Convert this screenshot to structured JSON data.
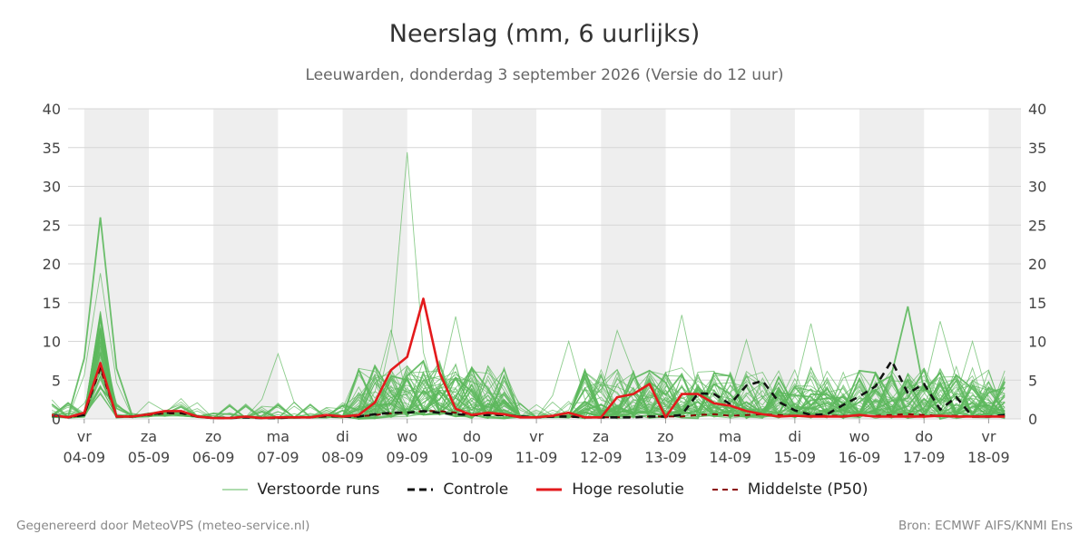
{
  "title": "Neerslag (mm, 6 uurlijks)",
  "subtitle": "Leeuwarden, donderdag  3 september 2026 (Versie do 12 uur)",
  "footer": {
    "left": "Gegenereerd door MeteoVPS (meteo-service.nl)",
    "right": "Bron: ECMWF AIFS/KNMI Ens"
  },
  "legend": [
    {
      "label": "Verstoorde runs",
      "color": "#5cb85c",
      "style": "thin"
    },
    {
      "label": "Controle",
      "color": "#111111",
      "style": "dashed"
    },
    {
      "label": "Hoge resolutie",
      "color": "#e31a1c",
      "style": "solid"
    },
    {
      "label": "Middelste (P50)",
      "color": "#8b0000",
      "style": "dashed-thin"
    }
  ],
  "chart_data": {
    "type": "line",
    "ylim": [
      0,
      40
    ],
    "yticks": [
      0,
      5,
      10,
      15,
      20,
      25,
      30,
      35,
      40
    ],
    "xlim_days": [
      -0.25,
      14.5
    ],
    "grid": true,
    "legend_position": "bottom",
    "day_ticks": [
      {
        "day": "vr",
        "date": "04-09"
      },
      {
        "day": "za",
        "date": "05-09"
      },
      {
        "day": "zo",
        "date": "06-09"
      },
      {
        "day": "ma",
        "date": "07-09"
      },
      {
        "day": "di",
        "date": "08-09"
      },
      {
        "day": "wo",
        "date": "09-09"
      },
      {
        "day": "do",
        "date": "10-09"
      },
      {
        "day": "vr",
        "date": "11-09"
      },
      {
        "day": "za",
        "date": "12-09"
      },
      {
        "day": "zo",
        "date": "13-09"
      },
      {
        "day": "ma",
        "date": "14-09"
      },
      {
        "day": "di",
        "date": "15-09"
      },
      {
        "day": "wo",
        "date": "16-09"
      },
      {
        "day": "do",
        "date": "17-09"
      },
      {
        "day": "vr",
        "date": "18-09"
      }
    ],
    "step_hours": 6,
    "start_hour": -12,
    "series": [
      {
        "name": "Hoge resolutie",
        "color": "#e31a1c",
        "values": [
          0.5,
          0.2,
          0.8,
          7.2,
          0.3,
          0.3,
          0.6,
          1.0,
          1.0,
          0.3,
          0.1,
          0.1,
          0.3,
          0.1,
          0.2,
          0.2,
          0.2,
          0.5,
          0.3,
          0.5,
          2.1,
          6.3,
          8.0,
          15.5,
          6.0,
          1.3,
          0.5,
          0.8,
          0.6,
          0.2,
          0.2,
          0.4,
          0.8,
          0.2,
          0.2,
          2.8,
          3.2,
          4.5,
          0.2,
          3.2,
          3.2,
          2.0,
          1.7,
          1.0,
          0.6,
          0.3,
          0.4,
          0.3,
          0.3,
          0.3,
          0.5,
          0.3,
          0.3,
          0.3,
          0.3,
          0.4,
          0.3,
          0.3,
          0.3,
          0.3
        ]
      },
      {
        "name": "Controle",
        "color": "#111111",
        "values": [
          0.5,
          0.2,
          0.5,
          7.0,
          0.3,
          0.3,
          0.6,
          0.8,
          0.8,
          0.3,
          0.1,
          0.1,
          0.2,
          0.1,
          0.1,
          0.2,
          0.2,
          0.4,
          0.3,
          0.3,
          0.6,
          0.8,
          0.8,
          1.0,
          0.8,
          0.6,
          0.5,
          0.5,
          0.5,
          0.3,
          0.2,
          0.3,
          0.3,
          0.2,
          0.2,
          0.2,
          0.2,
          0.3,
          0.3,
          0.5,
          3.3,
          3.2,
          1.9,
          4.3,
          4.9,
          2.2,
          1.1,
          0.5,
          0.6,
          1.8,
          2.9,
          4.2,
          7.5,
          3.3,
          4.5,
          1.2,
          2.8,
          0.3,
          0.3,
          0.5
        ]
      },
      {
        "name": "Middelste (P50)",
        "color": "#8b0000",
        "values": [
          0.4,
          0.2,
          0.5,
          6.5,
          0.3,
          0.3,
          0.5,
          0.7,
          0.7,
          0.3,
          0.1,
          0.1,
          0.2,
          0.1,
          0.1,
          0.2,
          0.2,
          0.3,
          0.3,
          0.3,
          0.5,
          0.7,
          0.8,
          1.0,
          1.0,
          0.8,
          0.6,
          0.6,
          0.5,
          0.3,
          0.2,
          0.3,
          0.3,
          0.2,
          0.2,
          0.2,
          0.2,
          0.3,
          0.3,
          0.3,
          0.5,
          0.6,
          0.4,
          0.5,
          0.6,
          0.5,
          0.4,
          0.4,
          0.4,
          0.4,
          0.4,
          0.4,
          0.5,
          0.6,
          0.5,
          0.4,
          0.4,
          0.3,
          0.3,
          0.3
        ]
      }
    ],
    "ensemble_member_count": 50,
    "ensemble_color": "#5cb85c",
    "ensemble_peaks": [
      {
        "step": 3,
        "value": 26.0
      },
      {
        "step": 3,
        "value": 18.8
      },
      {
        "step": 22,
        "value": 34.4
      },
      {
        "step": 21,
        "value": 11.5
      },
      {
        "step": 25,
        "value": 13.2
      },
      {
        "step": 39,
        "value": 13.4
      },
      {
        "step": 43,
        "value": 10.2
      },
      {
        "step": 35,
        "value": 11.4
      },
      {
        "step": 47,
        "value": 12.3
      },
      {
        "step": 53,
        "value": 14.5
      },
      {
        "step": 55,
        "value": 12.6
      },
      {
        "step": 57,
        "value": 10.0
      },
      {
        "step": 32,
        "value": 10.0
      },
      {
        "step": 14,
        "value": 8.4
      }
    ]
  }
}
